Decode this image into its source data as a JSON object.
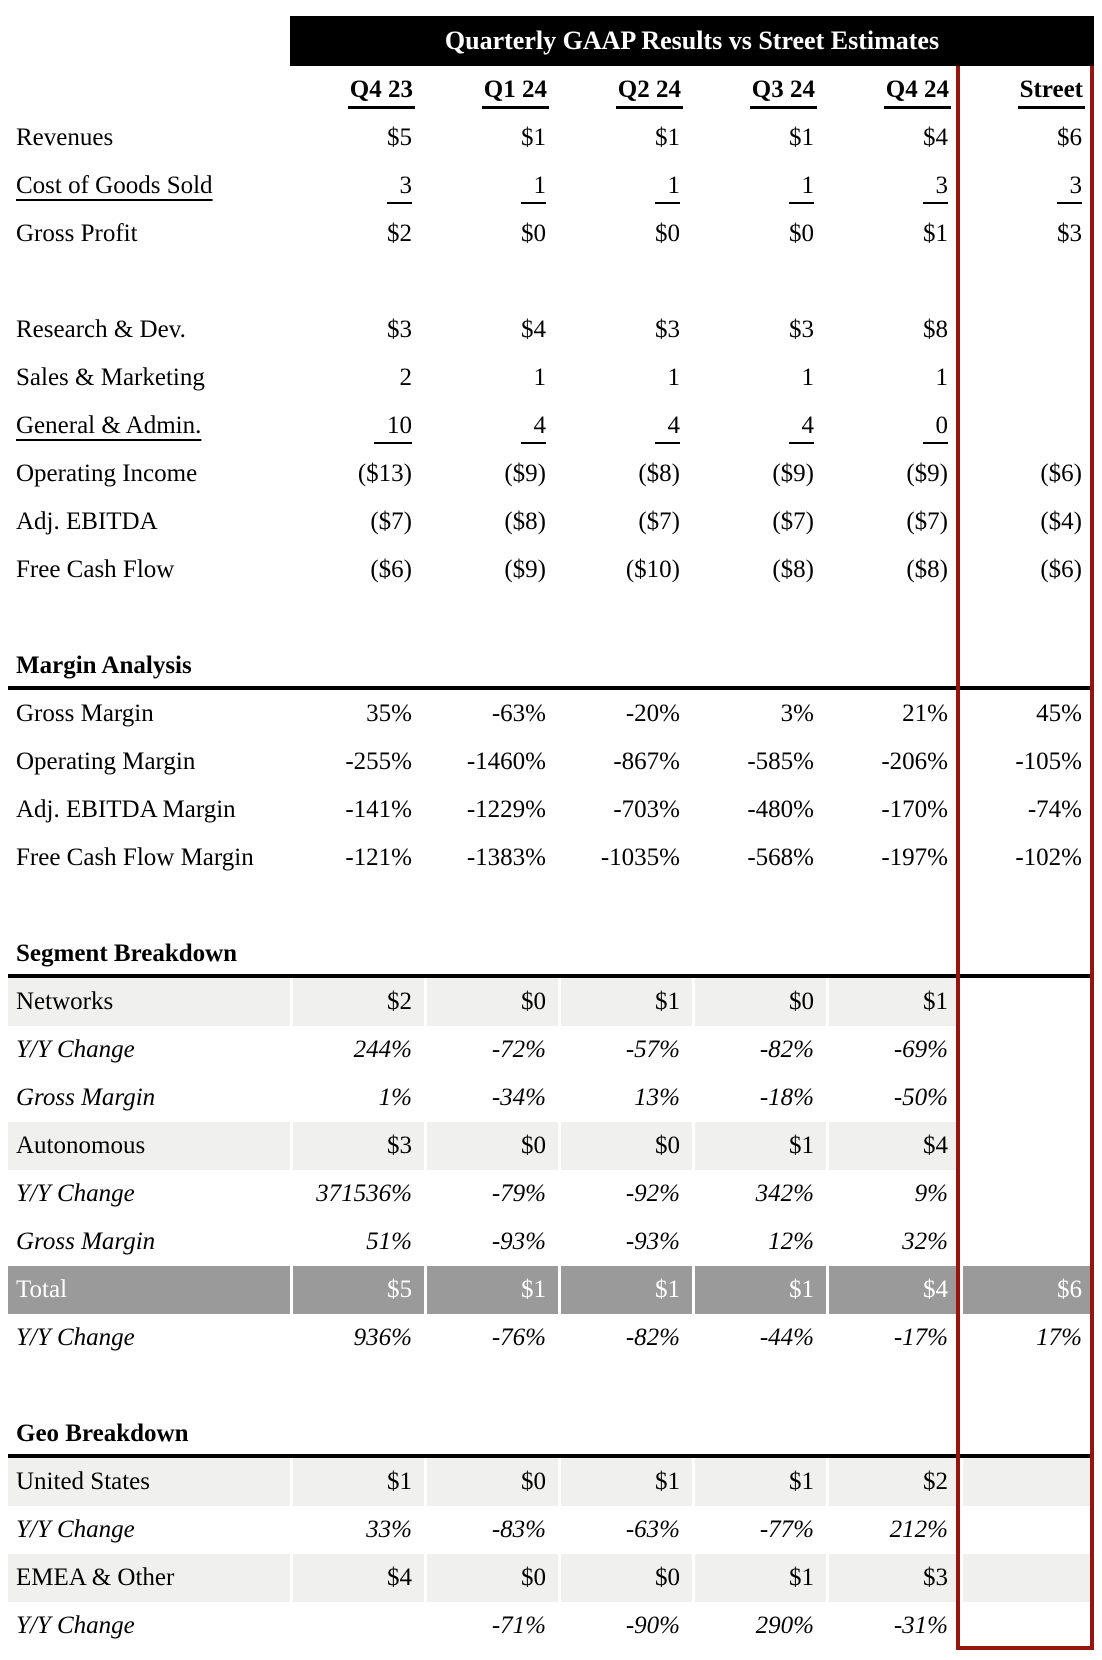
{
  "title": "Quarterly GAAP Results vs Street Estimates",
  "columns": [
    "",
    "Q4 23",
    "Q1 24",
    "Q2 24",
    "Q3 24",
    "Q4 24",
    "Street"
  ],
  "colors": {
    "title_bar": "#000000",
    "street_box_red": "#96150c",
    "band_gray": "#f0f0ee",
    "total_gray": "#9a9a9a",
    "section_line": "#000000"
  },
  "rows": [
    {
      "type": "plain",
      "label": "Revenues",
      "cells": [
        "$5",
        "$1",
        "$1",
        "$1",
        "$4",
        "$6"
      ]
    },
    {
      "type": "plain",
      "u": true,
      "label": "Cost of Goods Sold",
      "cells": [
        "3",
        "1",
        "1",
        "1",
        "3",
        "3"
      ]
    },
    {
      "type": "plain",
      "label": "Gross Profit",
      "cells": [
        "$2",
        "$0",
        "$0",
        "$0",
        "$1",
        "$3"
      ]
    },
    {
      "type": "blank",
      "label": "",
      "cells": [
        "",
        "",
        "",
        "",
        "",
        ""
      ]
    },
    {
      "type": "plain",
      "label": "Research & Dev.",
      "cells": [
        "$3",
        "$4",
        "$3",
        "$3",
        "$8",
        ""
      ]
    },
    {
      "type": "plain",
      "label": "Sales & Marketing",
      "cells": [
        "2",
        "1",
        "1",
        "1",
        "1",
        ""
      ]
    },
    {
      "type": "plain",
      "u": true,
      "label": "General & Admin.",
      "cells": [
        "10",
        "4",
        "4",
        "4",
        "0",
        ""
      ]
    },
    {
      "type": "plain",
      "label": "Operating Income",
      "cells": [
        "($13)",
        "($9)",
        "($8)",
        "($9)",
        "($9)",
        "($6)"
      ]
    },
    {
      "type": "plain",
      "label": "Adj. EBITDA",
      "cells": [
        "($7)",
        "($8)",
        "($7)",
        "($7)",
        "($7)",
        "($4)"
      ]
    },
    {
      "type": "plain",
      "label": "Free Cash Flow",
      "cells": [
        "($6)",
        "($9)",
        "($10)",
        "($8)",
        "($8)",
        "($6)"
      ]
    },
    {
      "type": "blank",
      "label": "",
      "cells": [
        "",
        "",
        "",
        "",
        "",
        ""
      ]
    },
    {
      "type": "section",
      "label": "Margin Analysis",
      "cells": [
        "",
        "",
        "",
        "",
        "",
        ""
      ]
    },
    {
      "type": "plain",
      "label": "Gross Margin",
      "cells": [
        "35%",
        "-63%",
        "-20%",
        "3%",
        "21%",
        "45%"
      ]
    },
    {
      "type": "plain",
      "label": "Operating Margin",
      "cells": [
        "-255%",
        "-1460%",
        "-867%",
        "-585%",
        "-206%",
        "-105%"
      ]
    },
    {
      "type": "plain",
      "label": "Adj. EBITDA Margin",
      "cells": [
        "-141%",
        "-1229%",
        "-703%",
        "-480%",
        "-170%",
        "-74%"
      ]
    },
    {
      "type": "plain",
      "label": "Free Cash Flow Margin",
      "cells": [
        "-121%",
        "-1383%",
        "-1035%",
        "-568%",
        "-197%",
        "-102%"
      ]
    },
    {
      "type": "blank",
      "label": "",
      "cells": [
        "",
        "",
        "",
        "",
        "",
        ""
      ]
    },
    {
      "type": "section",
      "label": "Segment Breakdown",
      "cells": [
        "",
        "",
        "",
        "",
        "",
        ""
      ]
    },
    {
      "type": "banded-ws",
      "label": "Networks",
      "cells": [
        "$2",
        "$0",
        "$1",
        "$0",
        "$1",
        ""
      ]
    },
    {
      "type": "italic",
      "label": "Y/Y Change",
      "cells": [
        "244%",
        "-72%",
        "-57%",
        "-82%",
        "-69%",
        ""
      ]
    },
    {
      "type": "italic",
      "label": "Gross Margin",
      "cells": [
        "1%",
        "-34%",
        "13%",
        "-18%",
        "-50%",
        ""
      ]
    },
    {
      "type": "banded-ws",
      "label": "Autonomous",
      "cells": [
        "$3",
        "$0",
        "$0",
        "$1",
        "$4",
        ""
      ]
    },
    {
      "type": "italic",
      "label": "Y/Y Change",
      "cells": [
        "371536%",
        "-79%",
        "-92%",
        "342%",
        "9%",
        ""
      ]
    },
    {
      "type": "italic",
      "label": "Gross Margin",
      "cells": [
        "51%",
        "-93%",
        "-93%",
        "12%",
        "32%",
        ""
      ]
    },
    {
      "type": "total",
      "label": "Total",
      "cells": [
        "$5",
        "$1",
        "$1",
        "$1",
        "$4",
        "$6"
      ]
    },
    {
      "type": "italic",
      "label": "Y/Y Change",
      "cells": [
        "936%",
        "-76%",
        "-82%",
        "-44%",
        "-17%",
        "17%"
      ]
    },
    {
      "type": "blank",
      "label": "",
      "cells": [
        "",
        "",
        "",
        "",
        "",
        ""
      ]
    },
    {
      "type": "section",
      "label": "Geo Breakdown",
      "cells": [
        "",
        "",
        "",
        "",
        "",
        ""
      ]
    },
    {
      "type": "banded",
      "label": "United States",
      "cells": [
        "$1",
        "$0",
        "$1",
        "$1",
        "$2",
        ""
      ]
    },
    {
      "type": "italic",
      "label": "Y/Y Change",
      "cells": [
        "33%",
        "-83%",
        "-63%",
        "-77%",
        "212%",
        ""
      ]
    },
    {
      "type": "banded",
      "label": "EMEA & Other",
      "cells": [
        "$4",
        "$0",
        "$0",
        "$1",
        "$3",
        ""
      ]
    },
    {
      "type": "italic",
      "label": "Y/Y Change",
      "cells": [
        "",
        "-71%",
        "-90%",
        "290%",
        "-31%",
        ""
      ]
    }
  ]
}
